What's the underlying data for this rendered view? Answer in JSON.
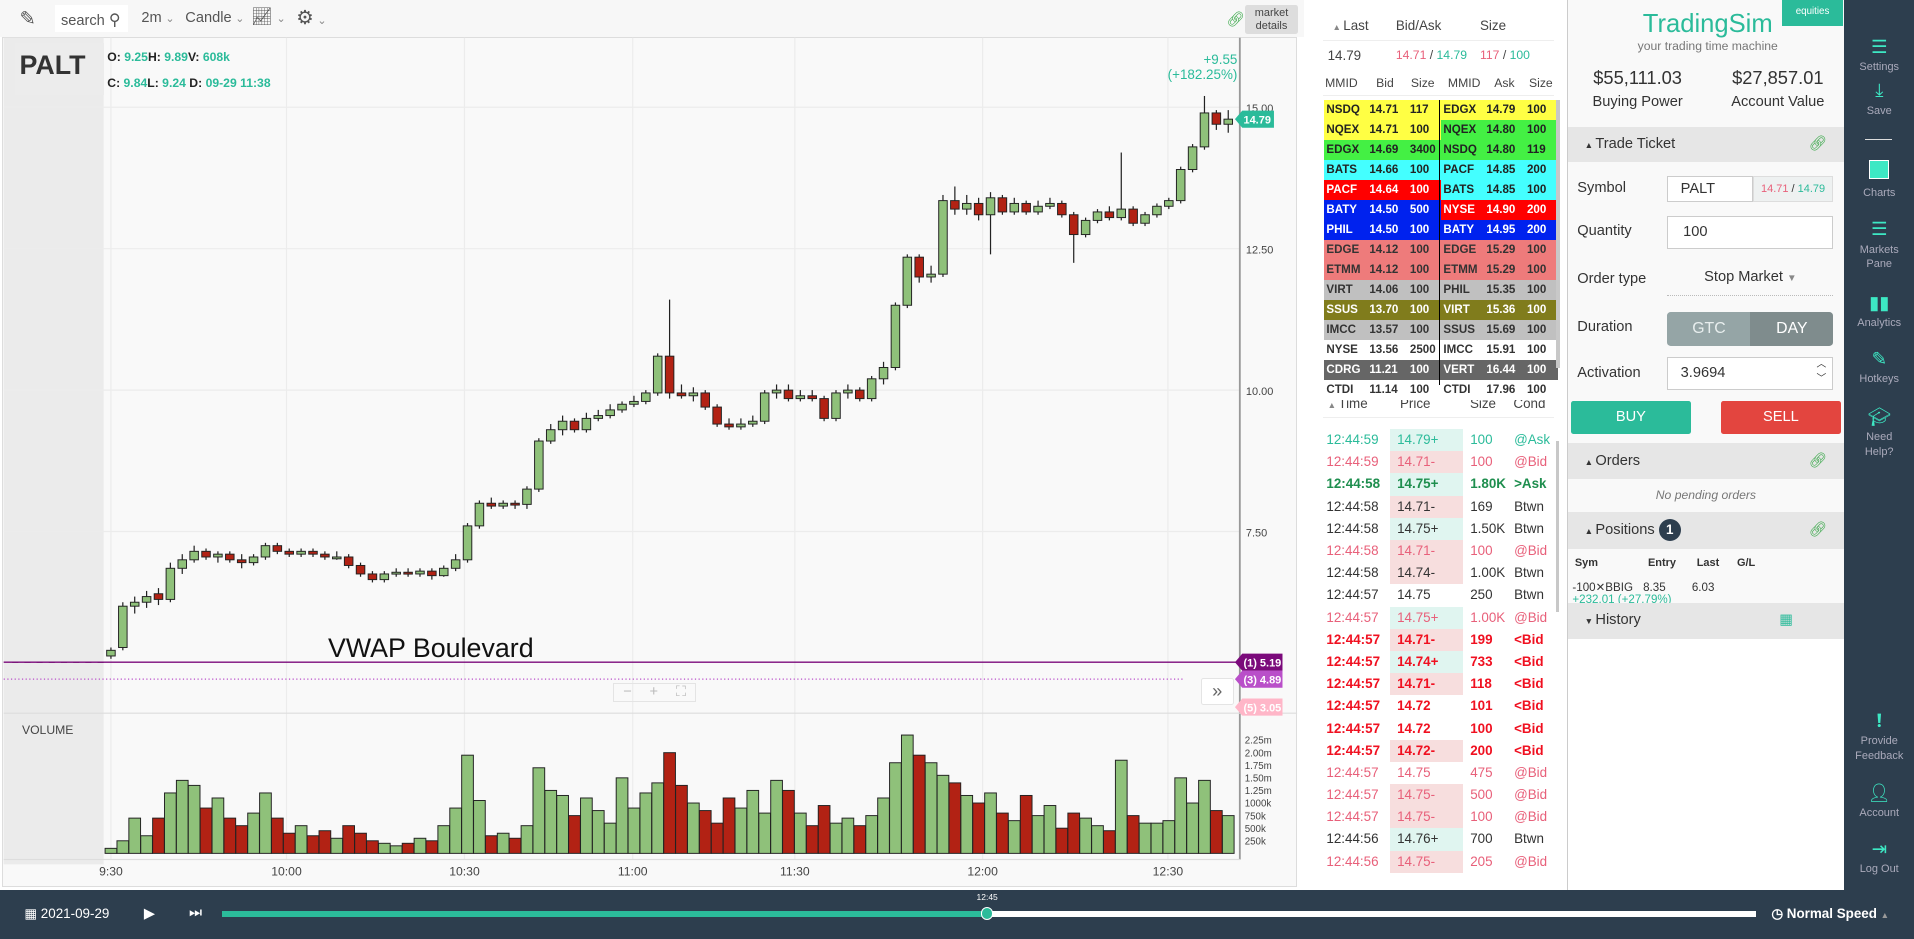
{
  "toolbar": {
    "search_placeholder": "search",
    "interval": "2m",
    "chart_type": "Candle",
    "market_details": "market details"
  },
  "quote_header": {
    "symbol": "PALT",
    "o_label": "O:",
    "o": "9.25",
    "h_label": "H:",
    "h": "9.89",
    "v_label": "V:",
    "v": "608k",
    "c_label": "C:",
    "c": "9.84",
    "l_label": "L:",
    "l": "9.24",
    "d_label": "D:",
    "d": "09-29 11:38",
    "change": "+9.55 (+182.25%)"
  },
  "chart_data": {
    "type": "candlestick",
    "price_ticks": [
      "15.00",
      "12.50",
      "10.00",
      "7.50"
    ],
    "price_range": [
      4.3,
      16.2
    ],
    "time_ticks": [
      "9:30",
      "10:00",
      "10:30",
      "11:00",
      "11:30",
      "12:00",
      "12:30"
    ],
    "volume_label": "VOLUME",
    "volume_ticks": [
      "2.25m",
      "2.00m",
      "1.75m",
      "1.50m",
      "1.25m",
      "1000k",
      "750k",
      "500k",
      "250k"
    ],
    "premarket_price": 5.19,
    "candles_ohlcv_millions": [
      [
        5.3,
        5.45,
        5.25,
        5.4,
        0.1
      ],
      [
        5.45,
        6.25,
        5.4,
        6.18,
        0.25
      ],
      [
        6.18,
        6.35,
        6.05,
        6.25,
        0.7
      ],
      [
        6.25,
        6.45,
        6.15,
        6.35,
        0.35
      ],
      [
        6.4,
        6.5,
        6.2,
        6.3,
        0.7
      ],
      [
        6.3,
        6.95,
        6.25,
        6.85,
        1.2
      ],
      [
        6.85,
        7.1,
        6.75,
        7.0,
        1.45
      ],
      [
        7.0,
        7.25,
        6.95,
        7.15,
        1.35
      ],
      [
        7.15,
        7.2,
        7.0,
        7.05,
        0.9
      ],
      [
        7.05,
        7.15,
        6.95,
        7.1,
        1.1
      ],
      [
        7.1,
        7.15,
        6.95,
        7.0,
        0.7
      ],
      [
        7.0,
        7.1,
        6.85,
        6.95,
        0.55
      ],
      [
        6.95,
        7.1,
        6.9,
        7.05,
        0.8
      ],
      [
        7.05,
        7.3,
        7.0,
        7.25,
        1.2
      ],
      [
        7.25,
        7.3,
        7.1,
        7.15,
        0.7
      ],
      [
        7.15,
        7.2,
        7.05,
        7.1,
        0.4
      ],
      [
        7.1,
        7.2,
        7.05,
        7.15,
        0.55
      ],
      [
        7.15,
        7.2,
        7.05,
        7.1,
        0.35
      ],
      [
        7.1,
        7.15,
        7.0,
        7.05,
        0.45
      ],
      [
        7.05,
        7.15,
        7.0,
        7.05,
        0.3
      ],
      [
        7.05,
        7.1,
        6.85,
        6.9,
        0.55
      ],
      [
        6.9,
        6.95,
        6.7,
        6.75,
        0.4
      ],
      [
        6.75,
        6.8,
        6.6,
        6.65,
        0.25
      ],
      [
        6.65,
        6.8,
        6.6,
        6.75,
        0.2
      ],
      [
        6.75,
        6.85,
        6.7,
        6.78,
        0.15
      ],
      [
        6.78,
        6.85,
        6.7,
        6.75,
        0.2
      ],
      [
        6.75,
        6.85,
        6.7,
        6.8,
        0.3
      ],
      [
        6.8,
        6.85,
        6.65,
        6.72,
        0.25
      ],
      [
        6.72,
        6.9,
        6.7,
        6.85,
        0.55
      ],
      [
        6.85,
        7.1,
        6.8,
        7.0,
        0.9
      ],
      [
        7.0,
        7.65,
        6.95,
        7.6,
        1.95
      ],
      [
        7.6,
        8.05,
        7.55,
        8.0,
        1.05
      ],
      [
        8.0,
        8.1,
        7.9,
        7.95,
        0.35
      ],
      [
        7.95,
        8.05,
        7.9,
        8.0,
        0.4
      ],
      [
        8.0,
        8.05,
        7.9,
        7.98,
        0.3
      ],
      [
        7.98,
        8.3,
        7.9,
        8.25,
        0.55
      ],
      [
        8.25,
        9.15,
        8.2,
        9.1,
        1.7
      ],
      [
        9.1,
        9.4,
        9.05,
        9.3,
        1.25
      ],
      [
        9.3,
        9.55,
        9.2,
        9.45,
        1.15
      ],
      [
        9.45,
        9.5,
        9.25,
        9.3,
        0.75
      ],
      [
        9.3,
        9.6,
        9.25,
        9.5,
        1.1
      ],
      [
        9.5,
        9.65,
        9.45,
        9.55,
        0.85
      ],
      [
        9.55,
        9.75,
        9.5,
        9.65,
        0.6
      ],
      [
        9.65,
        9.8,
        9.6,
        9.75,
        1.5
      ],
      [
        9.75,
        9.9,
        9.7,
        9.8,
        0.9
      ],
      [
        9.8,
        10.0,
        9.75,
        9.95,
        1.2
      ],
      [
        9.95,
        10.65,
        9.9,
        10.6,
        1.4
      ],
      [
        10.6,
        11.6,
        9.85,
        9.95,
        2.0
      ],
      [
        9.95,
        10.1,
        9.85,
        9.9,
        1.35
      ],
      [
        9.9,
        10.05,
        9.8,
        9.95,
        1.0
      ],
      [
        9.95,
        10.0,
        9.65,
        9.7,
        0.85
      ],
      [
        9.7,
        9.75,
        9.35,
        9.4,
        0.6
      ],
      [
        9.4,
        9.5,
        9.3,
        9.35,
        1.1
      ],
      [
        9.35,
        9.5,
        9.3,
        9.4,
        0.9
      ],
      [
        9.4,
        9.55,
        9.35,
        9.45,
        1.25
      ],
      [
        9.45,
        10.0,
        9.4,
        9.95,
        0.8
      ],
      [
        9.95,
        10.1,
        9.85,
        10.0,
        1.45
      ],
      [
        10.0,
        10.1,
        9.8,
        9.85,
        1.25
      ],
      [
        9.85,
        10.0,
        9.8,
        9.9,
        0.8
      ],
      [
        9.9,
        10.0,
        9.8,
        9.85,
        0.55
      ],
      [
        9.85,
        9.9,
        9.45,
        9.5,
        0.95
      ],
      [
        9.5,
        10.0,
        9.45,
        9.95,
        0.6
      ],
      [
        9.95,
        10.1,
        9.85,
        10.0,
        0.7
      ],
      [
        10.0,
        10.05,
        9.8,
        9.85,
        0.55
      ],
      [
        9.85,
        10.25,
        9.8,
        10.2,
        0.75
      ],
      [
        10.2,
        10.5,
        10.1,
        10.4,
        1.1
      ],
      [
        10.4,
        11.55,
        10.35,
        11.5,
        1.8
      ],
      [
        11.5,
        12.4,
        11.45,
        12.35,
        2.35
      ],
      [
        12.35,
        12.4,
        11.9,
        12.0,
        1.95
      ],
      [
        12.0,
        12.2,
        11.9,
        12.05,
        1.8
      ],
      [
        12.05,
        13.45,
        12.0,
        13.35,
        1.55
      ],
      [
        13.35,
        13.6,
        13.1,
        13.2,
        1.4
      ],
      [
        13.2,
        13.45,
        13.1,
        13.3,
        1.15
      ],
      [
        13.3,
        13.4,
        13.0,
        13.1,
        1.0
      ],
      [
        13.1,
        13.5,
        12.4,
        13.4,
        1.2
      ],
      [
        13.4,
        13.45,
        13.1,
        13.15,
        0.8
      ],
      [
        13.15,
        13.4,
        13.1,
        13.3,
        0.65
      ],
      [
        13.3,
        13.35,
        13.1,
        13.15,
        1.15
      ],
      [
        13.15,
        13.35,
        13.1,
        13.25,
        0.75
      ],
      [
        13.25,
        13.4,
        13.2,
        13.3,
        0.95
      ],
      [
        13.3,
        13.35,
        13.05,
        13.1,
        0.5
      ],
      [
        13.1,
        13.15,
        12.25,
        12.75,
        0.8
      ],
      [
        12.75,
        13.05,
        12.7,
        13.0,
        0.7
      ],
      [
        13.0,
        13.2,
        12.95,
        13.15,
        0.55
      ],
      [
        13.15,
        13.25,
        13.0,
        13.05,
        0.45
      ],
      [
        13.05,
        14.2,
        13.0,
        13.2,
        1.85
      ],
      [
        13.2,
        13.25,
        12.9,
        12.95,
        0.75
      ],
      [
        12.95,
        13.15,
        12.9,
        13.1,
        0.6
      ],
      [
        13.1,
        13.3,
        13.05,
        13.25,
        0.6
      ],
      [
        13.25,
        13.4,
        13.2,
        13.35,
        0.65
      ],
      [
        13.35,
        13.95,
        13.3,
        13.9,
        1.5
      ],
      [
        13.9,
        14.35,
        13.85,
        14.3,
        1.0
      ],
      [
        14.3,
        15.2,
        14.25,
        14.9,
        1.45
      ],
      [
        14.9,
        14.95,
        14.6,
        14.7,
        0.85
      ],
      [
        14.7,
        14.95,
        14.55,
        14.79,
        0.75
      ]
    ],
    "last_price_tag": "14.79",
    "levels": [
      {
        "label": "(1) 5.19",
        "value": 5.19,
        "color": "#7b0a7b"
      },
      {
        "label": "(3) 4.89",
        "value": 4.89,
        "color": "#b94fc9"
      },
      {
        "label": "(5) 3.05",
        "value": 3.05,
        "color": "#ffb6c8"
      }
    ],
    "annotation": "VWAP Boulevard",
    "up_color": "#8fc17a",
    "down_color": "#b22214"
  },
  "quote": {
    "h_last": "Last",
    "h_bidask": "Bid/Ask",
    "h_size": "Size",
    "last": "14.79",
    "bid": "14.71",
    "ask": "14.79",
    "bid_size": "117",
    "ask_size": "100",
    "sep": "/"
  },
  "level2": {
    "headers": [
      "MMID",
      "Bid",
      "Size",
      "MMID",
      "Ask",
      "Size"
    ],
    "row_colors": [
      [
        "#ffff44",
        "#222"
      ],
      [
        "#ffff44",
        "#222"
      ],
      [
        "#44f044",
        "#222"
      ],
      [
        "#44ffff",
        "#222"
      ],
      [
        "#ff0000",
        "#fff"
      ],
      [
        "#0022ee",
        "#fff"
      ],
      [
        "#0022ee",
        "#fff"
      ],
      [
        "#ee7b7b",
        "#333"
      ],
      [
        "#ee7b7b",
        "#333"
      ],
      [
        "#c0c0c0",
        "#333"
      ],
      [
        "#807c1c",
        "#fff"
      ],
      [
        "#c0c0c0",
        "#333"
      ],
      [
        "#ffffff",
        "#333"
      ],
      [
        "#666666",
        "#fff"
      ],
      [
        "#ffffff",
        "#333"
      ]
    ],
    "ask_colors": [
      [
        "#ffff44",
        "#222"
      ],
      [
        "#44f044",
        "#222"
      ],
      [
        "#44f044",
        "#222"
      ],
      [
        "#44ffff",
        "#222"
      ],
      [
        "#44ffff",
        "#222"
      ],
      [
        "#ff0000",
        "#fff"
      ],
      [
        "#0022ee",
        "#fff"
      ],
      [
        "#ee7b7b",
        "#333"
      ],
      [
        "#ee7b7b",
        "#333"
      ],
      [
        "#c0c0c0",
        "#333"
      ],
      [
        "#807c1c",
        "#fff"
      ],
      [
        "#c0c0c0",
        "#333"
      ],
      [
        "#ffffff",
        "#333"
      ],
      [
        "#666666",
        "#fff"
      ],
      [
        "#ffffff",
        "#333"
      ]
    ],
    "bids": [
      [
        "NSDQ",
        "14.71",
        "117"
      ],
      [
        "NQEX",
        "14.71",
        "100"
      ],
      [
        "EDGX",
        "14.69",
        "3400"
      ],
      [
        "BATS",
        "14.66",
        "100"
      ],
      [
        "PACF",
        "14.64",
        "100"
      ],
      [
        "BATY",
        "14.50",
        "500"
      ],
      [
        "PHIL",
        "14.50",
        "100"
      ],
      [
        "EDGE",
        "14.12",
        "100"
      ],
      [
        "ETMM",
        "14.12",
        "100"
      ],
      [
        "VIRT",
        "14.06",
        "100"
      ],
      [
        "SSUS",
        "13.70",
        "100"
      ],
      [
        "IMCC",
        "13.57",
        "100"
      ],
      [
        "NYSE",
        "13.56",
        "2500"
      ],
      [
        "CDRG",
        "11.21",
        "100"
      ],
      [
        "CTDI",
        "11.14",
        "100"
      ]
    ],
    "asks": [
      [
        "EDGX",
        "14.79",
        "100"
      ],
      [
        "NQEX",
        "14.80",
        "100"
      ],
      [
        "NSDQ",
        "14.80",
        "119"
      ],
      [
        "PACF",
        "14.85",
        "200"
      ],
      [
        "BATS",
        "14.85",
        "100"
      ],
      [
        "NYSE",
        "14.90",
        "200"
      ],
      [
        "BATY",
        "14.95",
        "200"
      ],
      [
        "EDGE",
        "15.29",
        "100"
      ],
      [
        "ETMM",
        "15.29",
        "100"
      ],
      [
        "PHIL",
        "15.35",
        "100"
      ],
      [
        "VIRT",
        "15.36",
        "100"
      ],
      [
        "SSUS",
        "15.69",
        "100"
      ],
      [
        "IMCC",
        "15.91",
        "100"
      ],
      [
        "VERT",
        "16.44",
        "100"
      ],
      [
        "CTDI",
        "17.96",
        "100"
      ]
    ]
  },
  "time_sales": {
    "headers": [
      "Time",
      "Price",
      "Size",
      "Cond"
    ],
    "rows": [
      [
        "12:44:59",
        "14.79+",
        "100",
        "@Ask",
        "ask"
      ],
      [
        "12:44:59",
        "14.71-",
        "100",
        "@Bid",
        "bid"
      ],
      [
        "12:44:58",
        "14.75+",
        "1.80K",
        ">Ask",
        "askb"
      ],
      [
        "12:44:58",
        "14.71-",
        "169",
        "Btwn",
        "n"
      ],
      [
        "12:44:58",
        "14.75+",
        "1.50K",
        "Btwn",
        "n"
      ],
      [
        "12:44:58",
        "14.71-",
        "100",
        "@Bid",
        "bid"
      ],
      [
        "12:44:58",
        "14.74-",
        "1.00K",
        "Btwn",
        "n"
      ],
      [
        "12:44:57",
        "14.75",
        "250",
        "Btwn",
        "n"
      ],
      [
        "12:44:57",
        "14.75+",
        "1.00K",
        "@Bid",
        "bid"
      ],
      [
        "12:44:57",
        "14.71-",
        "199",
        "<Bid",
        "bidb"
      ],
      [
        "12:44:57",
        "14.74+",
        "733",
        "<Bid",
        "bidb"
      ],
      [
        "12:44:57",
        "14.71-",
        "118",
        "<Bid",
        "bidb"
      ],
      [
        "12:44:57",
        "14.72",
        "101",
        "<Bid",
        "bidb"
      ],
      [
        "12:44:57",
        "14.72",
        "100",
        "<Bid",
        "bidb"
      ],
      [
        "12:44:57",
        "14.72-",
        "200",
        "<Bid",
        "bidb"
      ],
      [
        "12:44:57",
        "14.75",
        "475",
        "@Bid",
        "bid"
      ],
      [
        "12:44:57",
        "14.75-",
        "500",
        "@Bid",
        "bid"
      ],
      [
        "12:44:57",
        "14.75-",
        "100",
        "@Bid",
        "bid"
      ],
      [
        "12:44:56",
        "14.76+",
        "700",
        "Btwn",
        "n"
      ],
      [
        "12:44:56",
        "14.75-",
        "205",
        "@Bid",
        "bid"
      ]
    ]
  },
  "account": {
    "brand": "TradingSim",
    "badge": "equities",
    "tagline": "your trading time machine",
    "buying_power": "$55,111.03",
    "buying_power_label": "Buying Power",
    "account_value": "$27,857.01",
    "account_value_label": "Account Value"
  },
  "ticket": {
    "title": "Trade Ticket",
    "symbol_label": "Symbol",
    "symbol": "PALT",
    "bid": "14.71",
    "ask": "14.79",
    "sep": "/",
    "quantity_label": "Quantity",
    "quantity": "100",
    "order_type_label": "Order type",
    "order_type": "Stop Market",
    "duration_label": "Duration",
    "gtc": "GTC",
    "day": "DAY",
    "activation_label": "Activation",
    "activation": "3.9694",
    "buy": "BUY",
    "sell": "SELL"
  },
  "orders": {
    "title": "Orders",
    "empty": "No pending orders"
  },
  "positions": {
    "title": "Positions",
    "count": "1",
    "headers": [
      "Sym",
      "Entry",
      "Last",
      "G/L"
    ],
    "rows": [
      {
        "sym": "-100✕BBIG",
        "entry": "8.35",
        "last": "6.03",
        "gl": "+232.01 (+27.79%)"
      }
    ]
  },
  "history": {
    "title": "History"
  },
  "sidebar": {
    "items": [
      "Settings",
      "Save",
      "Charts",
      "Markets Pane",
      "Analytics",
      "Hotkeys",
      "Need Help?"
    ],
    "bottom": [
      "Provide Feedback",
      "Account",
      "Log Out"
    ]
  },
  "playback": {
    "date": "2021-09-29",
    "time": "12:45",
    "progress": 0.499,
    "speed": "Normal Speed"
  },
  "colors": {
    "accent": "#2bbb9a",
    "dark": "#2d3e4e",
    "buy": "#2bbb9a",
    "sell": "#e3453f"
  }
}
